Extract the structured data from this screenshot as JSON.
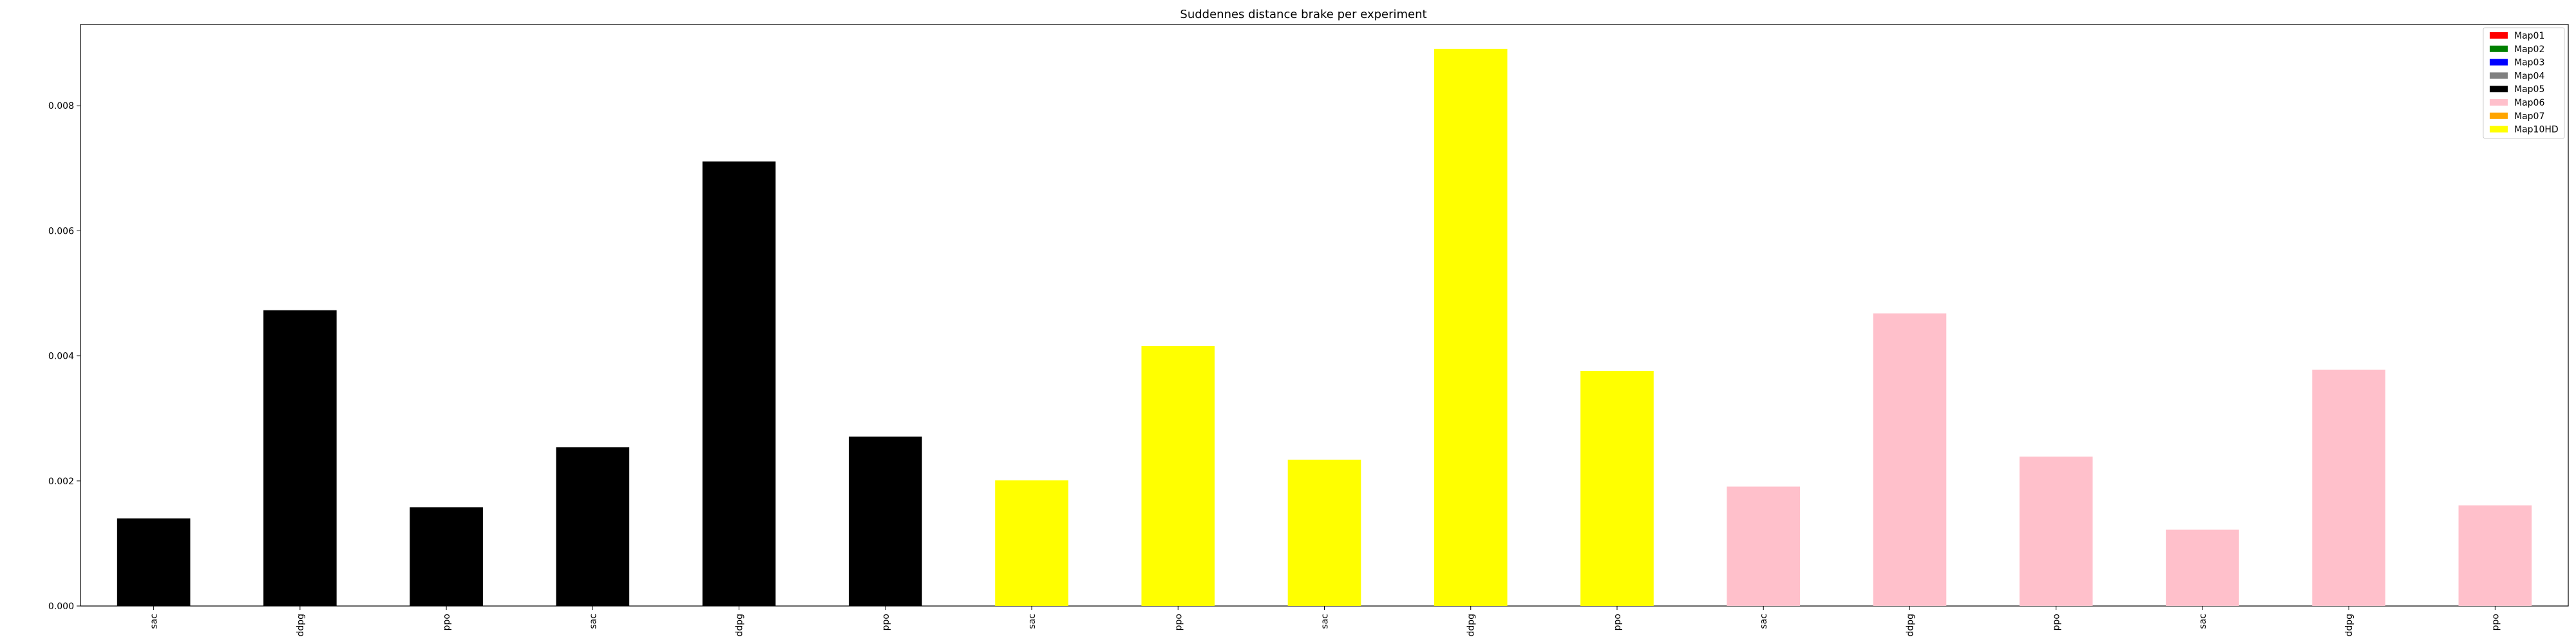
{
  "chart_data": {
    "type": "bar",
    "title": "Suddennes distance brake per experiment",
    "xlabel": "",
    "ylabel": "",
    "ylim": [
      0,
      0.0093
    ],
    "yticks": [
      0.0,
      0.002,
      0.004,
      0.006,
      0.008
    ],
    "ytick_labels": [
      "0.000",
      "0.002",
      "0.004",
      "0.006",
      "0.008"
    ],
    "grid": false,
    "legend_position": "top-right",
    "legend": [
      {
        "name": "Map01",
        "color": "#ff0000"
      },
      {
        "name": "Map02",
        "color": "#008000"
      },
      {
        "name": "Map03",
        "color": "#0000ff"
      },
      {
        "name": "Map04",
        "color": "#808080"
      },
      {
        "name": "Map05",
        "color": "#000000"
      },
      {
        "name": "Map06",
        "color": "#ffc0cb"
      },
      {
        "name": "Map07",
        "color": "#ffa500"
      },
      {
        "name": "Map10HD",
        "color": "#ffff00"
      }
    ],
    "categories": [
      "sac",
      "ddpg",
      "ppo",
      "sac",
      "ddpg",
      "ppo",
      "sac",
      "ppo",
      "sac",
      "ddpg",
      "ppo",
      "sac",
      "ddpg",
      "ppo",
      "sac",
      "ddpg",
      "ppo"
    ],
    "values": [
      0.0014,
      0.00473,
      0.00158,
      0.00254,
      0.00711,
      0.00271,
      0.00201,
      0.00416,
      0.00234,
      0.00891,
      0.00376,
      0.00191,
      0.00468,
      0.00239,
      0.00122,
      0.00378,
      0.00161
    ],
    "bar_colors": [
      "#000000",
      "#000000",
      "#000000",
      "#000000",
      "#000000",
      "#000000",
      "#ffff00",
      "#ffff00",
      "#ffff00",
      "#ffff00",
      "#ffff00",
      "#ffc0cb",
      "#ffc0cb",
      "#ffc0cb",
      "#ffc0cb",
      "#ffc0cb",
      "#ffc0cb"
    ]
  }
}
